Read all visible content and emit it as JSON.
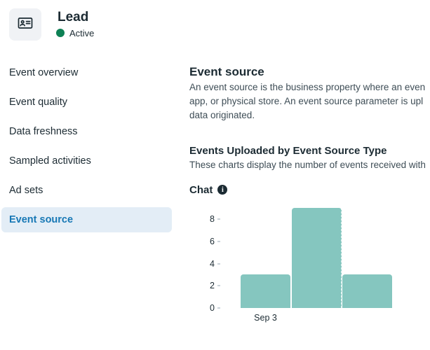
{
  "header": {
    "title": "Lead",
    "status": "Active",
    "status_color": "#0E8155",
    "icon": "contact-card-icon"
  },
  "sidebar": {
    "items": [
      {
        "label": "Event overview",
        "active": false
      },
      {
        "label": "Event quality",
        "active": false
      },
      {
        "label": "Data freshness",
        "active": false
      },
      {
        "label": "Sampled activities",
        "active": false
      },
      {
        "label": "Ad sets",
        "active": false
      },
      {
        "label": "Event source",
        "active": true
      }
    ],
    "active_text_color": "#1778B5",
    "active_bg_color": "#E3EDF6"
  },
  "content": {
    "section_title": "Event source",
    "description_lines": [
      "An event source is the business property where an even",
      "app, or physical store. An event source parameter is upl",
      "data originated."
    ],
    "subsection_title": "Events Uploaded by Event Source Type",
    "subsection_description": "These charts display the number of events received with",
    "chart_title": "Chat",
    "info_icon_glyph": "i"
  },
  "chart_data": {
    "type": "bar",
    "title": "Chat",
    "categories": [
      "Sep 3",
      "",
      ""
    ],
    "values": [
      3,
      9,
      3
    ],
    "xlabel": "",
    "ylabel": "",
    "yticks": [
      0,
      2,
      4,
      6,
      8
    ],
    "ylim": [
      0,
      9.5
    ],
    "bar_color": "#85C6BF",
    "grid": false,
    "legend": false
  }
}
